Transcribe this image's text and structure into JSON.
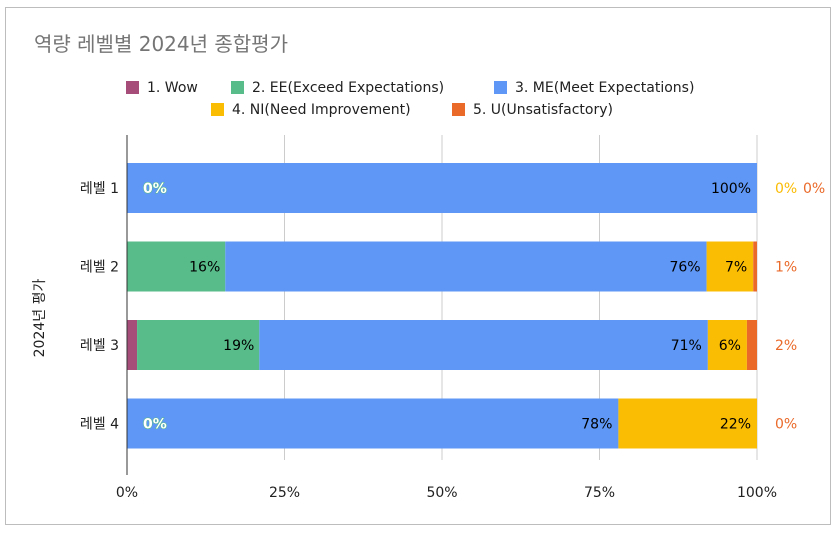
{
  "chart_data": {
    "type": "bar",
    "orientation": "horizontal",
    "stacked": "percent",
    "title": "역량 레벨별 2024년 종합평가",
    "ylabel": "2024년 평가",
    "xlim": [
      0,
      100
    ],
    "x_ticks": [
      "0%",
      "25%",
      "50%",
      "75%",
      "100%"
    ],
    "grid": true,
    "legend_position": "top",
    "categories": [
      "레벨 1",
      "레벨 2",
      "레벨 3",
      "레벨 4"
    ],
    "series": [
      {
        "name": "1. Wow",
        "color": "#a64d79",
        "values": [
          0,
          0,
          1.6,
          0
        ],
        "labels": [
          "",
          "",
          "",
          ""
        ],
        "label_color": "#ffffff"
      },
      {
        "name": "2. EE(Exceed Expectations)",
        "color": "#57bb8a",
        "values": [
          0,
          15.6,
          19.4,
          0
        ],
        "labels": [
          "0%",
          "16%",
          "19%",
          "0%"
        ],
        "label_color": "#000000"
      },
      {
        "name": "3. ME(Meet Expectations)",
        "color": "#5e97f6",
        "values": [
          100,
          76.4,
          71.2,
          78
        ],
        "labels": [
          "100%",
          "76%",
          "71%",
          "78%"
        ],
        "label_color": "#000000"
      },
      {
        "name": "4. NI(Need Improvement)",
        "color": "#fbbc04",
        "values": [
          0,
          7.4,
          6.2,
          22
        ],
        "labels": [
          "0%",
          "7%",
          "6%",
          "22%"
        ],
        "label_color": "#fbbc04"
      },
      {
        "name": "5. U(Unsatisfactory)",
        "color": "#ea6a2a",
        "values": [
          0,
          0.6,
          1.6,
          0
        ],
        "labels": [
          "0%",
          "1%",
          "2%",
          "0%"
        ],
        "label_color": "#ea6a2a"
      }
    ]
  }
}
